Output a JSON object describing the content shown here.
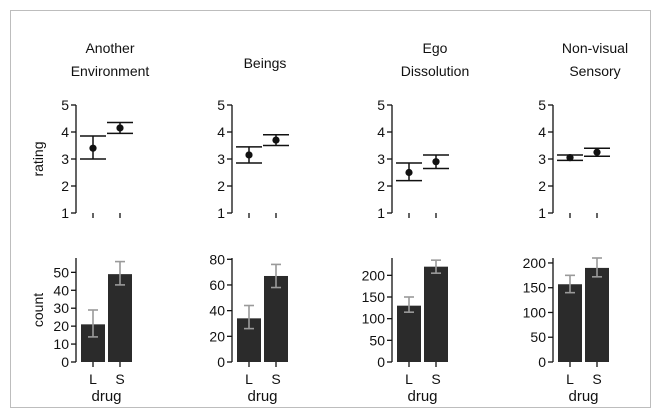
{
  "chart_data": [
    {
      "type": "scatter",
      "title": "Another Environment",
      "title_lines": [
        "Another",
        "Environment"
      ],
      "ylabel": "rating",
      "ylim": [
        1,
        5
      ],
      "yticks": [
        "1",
        "2",
        "3",
        "4",
        "5"
      ],
      "categories": [
        "L",
        "S"
      ],
      "values": [
        3.4,
        4.15
      ],
      "error": [
        [
          3.0,
          3.85
        ],
        [
          3.95,
          4.35
        ]
      ]
    },
    {
      "type": "scatter",
      "title": "Beings",
      "title_lines": [
        "Beings"
      ],
      "ylabel": "",
      "ylim": [
        1,
        5
      ],
      "yticks": [
        "1",
        "2",
        "3",
        "4",
        "5"
      ],
      "categories": [
        "L",
        "S"
      ],
      "values": [
        3.15,
        3.7
      ],
      "error": [
        [
          2.85,
          3.45
        ],
        [
          3.5,
          3.9
        ]
      ]
    },
    {
      "type": "scatter",
      "title": "Ego Dissolution",
      "title_lines": [
        "Ego",
        "Dissolution"
      ],
      "ylabel": "",
      "ylim": [
        1,
        5
      ],
      "yticks": [
        "1",
        "2",
        "3",
        "4",
        "5"
      ],
      "categories": [
        "L",
        "S"
      ],
      "values": [
        2.5,
        2.9
      ],
      "error": [
        [
          2.2,
          2.85
        ],
        [
          2.65,
          3.15
        ]
      ]
    },
    {
      "type": "scatter",
      "title": "Non-visual Sensory",
      "title_lines": [
        "Non-visual",
        "Sensory"
      ],
      "ylabel": "",
      "ylim": [
        1,
        5
      ],
      "yticks": [
        "1",
        "2",
        "3",
        "4",
        "5"
      ],
      "categories": [
        "L",
        "S"
      ],
      "values": [
        3.05,
        3.25
      ],
      "error": [
        [
          2.95,
          3.15
        ],
        [
          3.1,
          3.4
        ]
      ]
    },
    {
      "type": "bar",
      "xlabel": "drug",
      "ylabel": "count",
      "ylim": [
        0,
        58
      ],
      "yticks": [
        "0",
        "10",
        "20",
        "30",
        "40",
        "50"
      ],
      "categories": [
        "L",
        "S"
      ],
      "values": [
        21,
        49
      ],
      "error": [
        [
          14,
          29
        ],
        [
          43,
          56
        ]
      ],
      "bar_color": "#2b2b2b",
      "error_color": "#9a9a9a"
    },
    {
      "type": "bar",
      "xlabel": "drug",
      "ylabel": "",
      "ylim": [
        0,
        81
      ],
      "yticks": [
        "0",
        "20",
        "40",
        "60",
        "80"
      ],
      "categories": [
        "L",
        "S"
      ],
      "values": [
        34,
        67
      ],
      "error": [
        [
          26,
          44
        ],
        [
          58,
          76
        ]
      ],
      "bar_color": "#2b2b2b",
      "error_color": "#9a9a9a"
    },
    {
      "type": "bar",
      "xlabel": "drug",
      "ylabel": "",
      "ylim": [
        0,
        240
      ],
      "yticks": [
        "0",
        "50",
        "100",
        "150",
        "200"
      ],
      "categories": [
        "L",
        "S"
      ],
      "values": [
        130,
        220
      ],
      "error": [
        [
          115,
          150
        ],
        [
          205,
          235
        ]
      ],
      "bar_color": "#2b2b2b",
      "error_color": "#9a9a9a"
    },
    {
      "type": "bar",
      "xlabel": "drug",
      "ylabel": "",
      "ylim": [
        0,
        210
      ],
      "yticks": [
        "0",
        "50",
        "100",
        "150",
        "200"
      ],
      "categories": [
        "L",
        "S"
      ],
      "values": [
        157,
        190
      ],
      "error": [
        [
          140,
          175
        ],
        [
          172,
          210
        ]
      ],
      "bar_color": "#2b2b2b",
      "error_color": "#9a9a9a"
    }
  ]
}
